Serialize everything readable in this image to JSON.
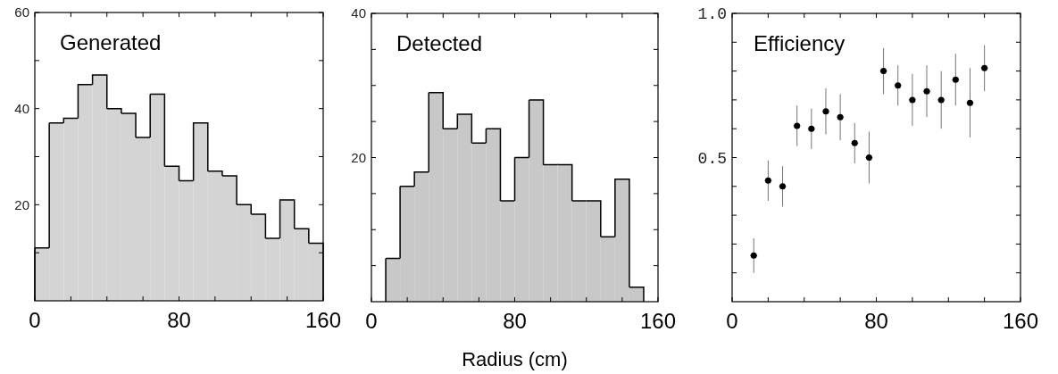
{
  "chart_data": [
    {
      "type": "histogram",
      "title": "Generated",
      "bins": [
        0,
        8,
        16,
        24,
        32,
        40,
        48,
        56,
        64,
        72,
        80,
        88,
        96,
        104,
        112,
        120,
        128,
        136,
        144,
        152,
        160
      ],
      "values": [
        11,
        37,
        38,
        45,
        47,
        40,
        39,
        34,
        43,
        28,
        25,
        37,
        27,
        26,
        20,
        18,
        13,
        21,
        15,
        12
      ],
      "color": "#d4d4d4",
      "xlim": [
        0,
        160
      ],
      "xticks": [
        0,
        {
          "value": 20,
          "label": null
        },
        {
          "value": 40,
          "label": null
        },
        {
          "value": 60,
          "label": null
        },
        80,
        {
          "value": 100,
          "label": null
        },
        {
          "value": 120,
          "label": null
        },
        {
          "value": 140,
          "label": null
        },
        160
      ],
      "ylim": [
        0,
        60
      ],
      "yticks": [
        {
          "value": 10,
          "label": null
        },
        20,
        {
          "value": 30,
          "label": null
        },
        40,
        {
          "value": 50,
          "label": null
        },
        60
      ],
      "grid": false
    },
    {
      "type": "histogram",
      "title": "Detected",
      "xlabel": "Radius (cm)",
      "bins": [
        0,
        8,
        16,
        24,
        32,
        40,
        48,
        56,
        64,
        72,
        80,
        88,
        96,
        104,
        112,
        120,
        128,
        136,
        144,
        152,
        160
      ],
      "values": [
        0,
        6,
        16,
        18,
        29,
        24,
        26,
        22,
        24,
        14,
        20,
        28,
        19,
        19,
        14,
        14,
        9,
        17,
        2,
        0
      ],
      "color": "#c8c8c8",
      "xlim": [
        0,
        160
      ],
      "xticks": [
        0,
        {
          "value": 20,
          "label": null
        },
        {
          "value": 40,
          "label": null
        },
        {
          "value": 60,
          "label": null
        },
        80,
        {
          "value": 100,
          "label": null
        },
        {
          "value": 120,
          "label": null
        },
        {
          "value": 140,
          "label": null
        },
        160
      ],
      "ylim": [
        0,
        40
      ],
      "yticks": [
        {
          "value": 5,
          "label": null
        },
        {
          "value": 10,
          "label": null
        },
        {
          "value": 15,
          "label": null
        },
        20,
        {
          "value": 25,
          "label": null
        },
        {
          "value": 30,
          "label": null
        },
        {
          "value": 35,
          "label": null
        },
        40
      ],
      "grid": false
    },
    {
      "type": "scatter",
      "title": "Efficiency",
      "x": [
        12,
        20,
        28,
        36,
        44,
        52,
        60,
        68,
        76,
        84,
        92,
        100,
        108,
        116,
        124,
        132,
        140
      ],
      "values": [
        0.16,
        0.42,
        0.4,
        0.61,
        0.6,
        0.66,
        0.64,
        0.55,
        0.5,
        0.8,
        0.75,
        0.7,
        0.73,
        0.7,
        0.77,
        0.69,
        0.81
      ],
      "errors": [
        0.06,
        0.07,
        0.07,
        0.07,
        0.07,
        0.08,
        0.08,
        0.07,
        0.09,
        0.08,
        0.07,
        0.09,
        0.09,
        0.1,
        0.09,
        0.12,
        0.08
      ],
      "xerrors": [
        2,
        2,
        2,
        2,
        2,
        2,
        2,
        2,
        2,
        2,
        2,
        2,
        2,
        2,
        2,
        2,
        2
      ],
      "color": "#000000",
      "marker": "circle",
      "xlim": [
        0,
        160
      ],
      "xticks": [
        0,
        {
          "value": 20,
          "label": null
        },
        {
          "value": 40,
          "label": null
        },
        {
          "value": 60,
          "label": null
        },
        80,
        {
          "value": 100,
          "label": null
        },
        {
          "value": 120,
          "label": null
        },
        {
          "value": 140,
          "label": null
        },
        160
      ],
      "ylim": [
        0,
        1
      ],
      "yticks": [
        {
          "value": 0.1,
          "label": null
        },
        {
          "value": 0.2,
          "label": null
        },
        {
          "value": 0.3,
          "label": null
        },
        {
          "value": 0.4,
          "label": null
        },
        {
          "value": 0.5,
          "label": "0.5"
        },
        {
          "value": 0.6,
          "label": null
        },
        {
          "value": 0.7,
          "label": null
        },
        {
          "value": 0.8,
          "label": null
        },
        {
          "value": 0.9,
          "label": null
        },
        {
          "value": 1,
          "label": "1.0"
        }
      ],
      "grid": false
    }
  ]
}
